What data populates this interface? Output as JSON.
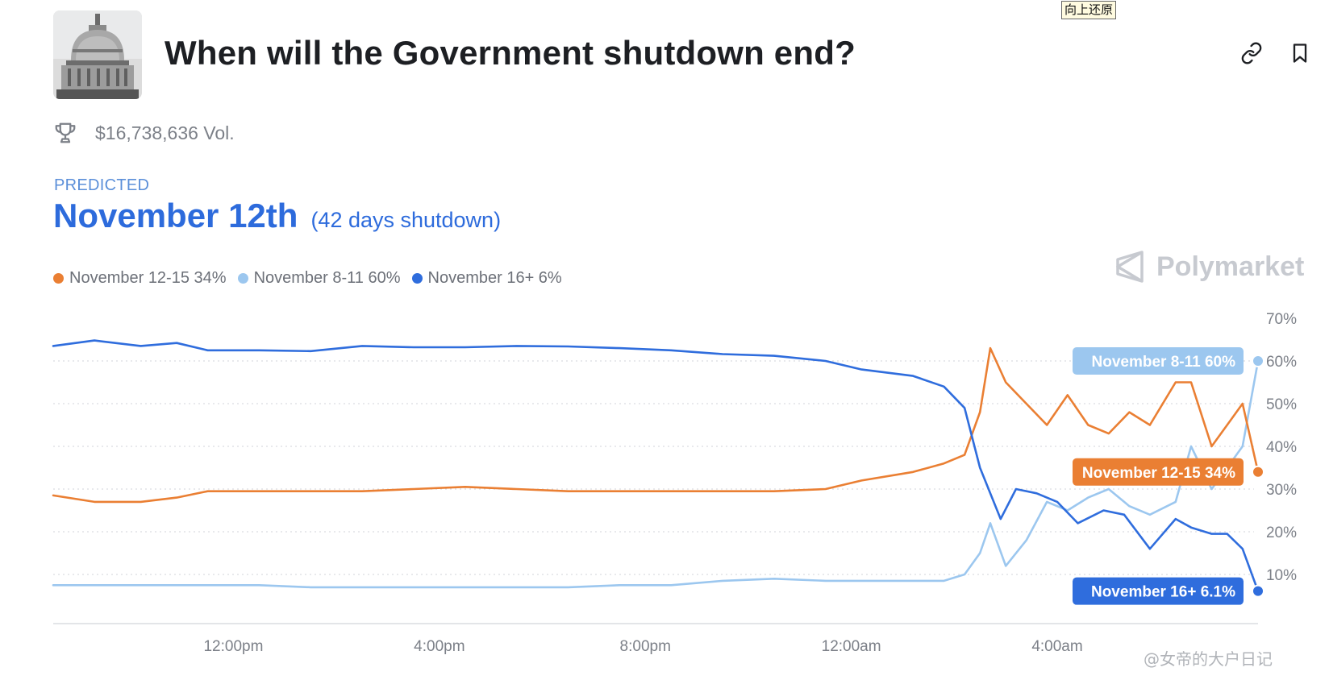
{
  "header": {
    "title": "When will the Government shutdown end?",
    "tooltip": "向上还原"
  },
  "icons": {
    "link": "link-icon",
    "bookmark": "bookmark-icon",
    "trophy": "trophy-icon",
    "brand": "polymarket-logo-icon"
  },
  "stats": {
    "volume": "$16,738,636 Vol."
  },
  "prediction": {
    "label": "PREDICTED",
    "value": "November 12th",
    "note": "(42 days shutdown)"
  },
  "legend": [
    {
      "label": "November 12-15 34%",
      "color": "#ea7f33"
    },
    {
      "label": "November 8-11 60%",
      "color": "#9cc7ef"
    },
    {
      "label": "November 16+ 6%",
      "color": "#2f6ddd"
    }
  ],
  "brand": {
    "name": "Polymarket"
  },
  "watermark": "@女帝的大户日记",
  "chart_data": {
    "type": "line",
    "x_ticks": [
      "12:00pm",
      "4:00pm",
      "8:00pm",
      "12:00am",
      "4:00am"
    ],
    "y_ticks": [
      "70%",
      "60%",
      "50%",
      "40%",
      "30%",
      "20%",
      "10%"
    ],
    "ylim": [
      0,
      70
    ],
    "grid": "horizontal dotted",
    "x_hours": {
      "start": 8.5,
      "end": 7.9,
      "tick_values": [
        12,
        16,
        20,
        24,
        28
      ]
    },
    "series": [
      {
        "name": "November 16+",
        "color": "#2f6ddd",
        "callout": "November 16+ 6.1%",
        "x": [
          8.5,
          9.3,
          10.2,
          10.9,
          11.5,
          12.5,
          13.5,
          14.5,
          15.5,
          16.5,
          17.5,
          18.5,
          19.5,
          20.5,
          21.5,
          22.5,
          23.5,
          24.2,
          25.2,
          25.8,
          26.2,
          26.5,
          26.9,
          27.2,
          27.6,
          28.0,
          28.4,
          28.9,
          29.3,
          29.8,
          30.3,
          30.6,
          31.0,
          31.3,
          31.6,
          31.9
        ],
        "values": [
          63.5,
          64.8,
          63.5,
          64.2,
          62.5,
          62.5,
          62.3,
          63.5,
          63.2,
          63.2,
          63.5,
          63.4,
          63.0,
          62.5,
          61.6,
          61.2,
          60.0,
          58.0,
          56.5,
          54.0,
          49.0,
          35.0,
          23.0,
          30.0,
          29.0,
          27.0,
          22.0,
          25.0,
          24.0,
          16.0,
          23.0,
          21.0,
          19.5,
          19.5,
          16.0,
          6.1
        ]
      },
      {
        "name": "November 12-15",
        "color": "#ea7f33",
        "callout": "November 12-15 34%",
        "x": [
          8.5,
          9.3,
          10.2,
          10.9,
          11.5,
          12.5,
          13.5,
          14.5,
          15.5,
          16.5,
          17.5,
          18.5,
          19.5,
          20.5,
          21.5,
          22.5,
          23.5,
          24.2,
          25.2,
          25.8,
          26.2,
          26.5,
          26.7,
          27.0,
          27.4,
          27.8,
          28.2,
          28.6,
          29.0,
          29.4,
          29.8,
          30.3,
          30.6,
          31.0,
          31.3,
          31.6,
          31.9
        ],
        "values": [
          28.5,
          27.0,
          27.0,
          28.0,
          29.5,
          29.5,
          29.5,
          29.5,
          30.0,
          30.5,
          30.0,
          29.5,
          29.5,
          29.5,
          29.5,
          29.5,
          30.0,
          32.0,
          34.0,
          36.0,
          38.0,
          48.0,
          63.0,
          55.0,
          50.0,
          45.0,
          52.0,
          45.0,
          43.0,
          48.0,
          45.0,
          55.0,
          55.0,
          40.0,
          45.0,
          50.0,
          34.0
        ]
      },
      {
        "name": "November 8-11",
        "color": "#9cc7ef",
        "callout": "November 8-11 60%",
        "x": [
          8.5,
          9.3,
          10.2,
          10.9,
          11.5,
          12.5,
          13.5,
          14.5,
          15.5,
          16.5,
          17.5,
          18.5,
          19.5,
          20.5,
          21.5,
          22.5,
          23.5,
          24.2,
          25.2,
          25.8,
          26.2,
          26.5,
          26.7,
          27.0,
          27.4,
          27.8,
          28.2,
          28.6,
          29.0,
          29.4,
          29.8,
          30.3,
          30.6,
          31.0,
          31.3,
          31.6,
          31.9
        ],
        "values": [
          7.5,
          7.5,
          7.5,
          7.5,
          7.5,
          7.5,
          7.0,
          7.0,
          7.0,
          7.0,
          7.0,
          7.0,
          7.5,
          7.5,
          8.5,
          9.0,
          8.5,
          8.5,
          8.5,
          8.5,
          10.0,
          15.0,
          22.0,
          12.0,
          18.0,
          27.0,
          25.0,
          28.0,
          30.0,
          26.0,
          24.0,
          27.0,
          40.0,
          30.0,
          35.0,
          40.0,
          60.0
        ]
      }
    ]
  }
}
